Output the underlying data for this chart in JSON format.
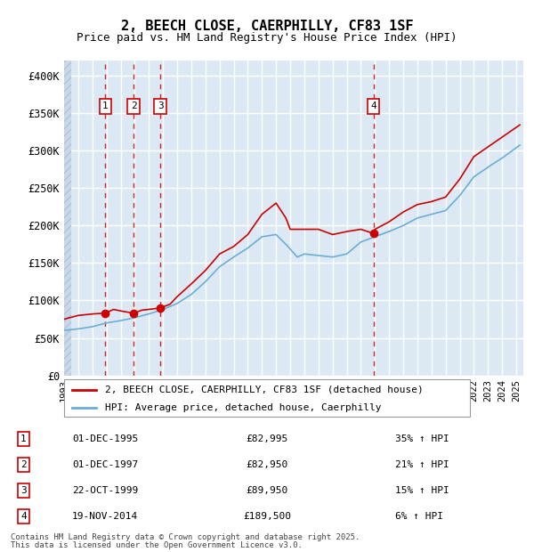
{
  "title_line1": "2, BEECH CLOSE, CAERPHILLY, CF83 1SF",
  "title_line2": "Price paid vs. HM Land Registry's House Price Index (HPI)",
  "ylabel": "",
  "xlabel": "",
  "ylim": [
    0,
    420000
  ],
  "yticks": [
    0,
    50000,
    100000,
    150000,
    200000,
    250000,
    300000,
    350000,
    400000
  ],
  "ytick_labels": [
    "£0",
    "£50K",
    "£100K",
    "£150K",
    "£200K",
    "£250K",
    "£300K",
    "£350K",
    "£400K"
  ],
  "hpi_color": "#6aaed6",
  "price_color": "#cc0000",
  "sale_marker_color": "#cc0000",
  "vline_color": "#cc0000",
  "bg_plot_color": "#dce9f5",
  "bg_hatch_color": "#c8d8e8",
  "grid_color": "#ffffff",
  "legend_label_price": "2, BEECH CLOSE, CAERPHILLY, CF83 1SF (detached house)",
  "legend_label_hpi": "HPI: Average price, detached house, Caerphilly",
  "sales": [
    {
      "num": 1,
      "date_num": 1995.92,
      "price": 82995,
      "label": "01-DEC-1995",
      "pct": "35%",
      "dir": "↑"
    },
    {
      "num": 2,
      "date_num": 1997.92,
      "price": 82950,
      "label": "01-DEC-1997",
      "pct": "21%",
      "dir": "↑"
    },
    {
      "num": 3,
      "date_num": 1999.81,
      "price": 89950,
      "label": "22-OCT-1999",
      "pct": "15%",
      "dir": "↑"
    },
    {
      "num": 4,
      "date_num": 2014.89,
      "price": 189500,
      "label": "19-NOV-2014",
      "pct": "6%",
      "dir": "↑"
    }
  ],
  "footer_line1": "Contains HM Land Registry data © Crown copyright and database right 2025.",
  "footer_line2": "This data is licensed under the Open Government Licence v3.0."
}
